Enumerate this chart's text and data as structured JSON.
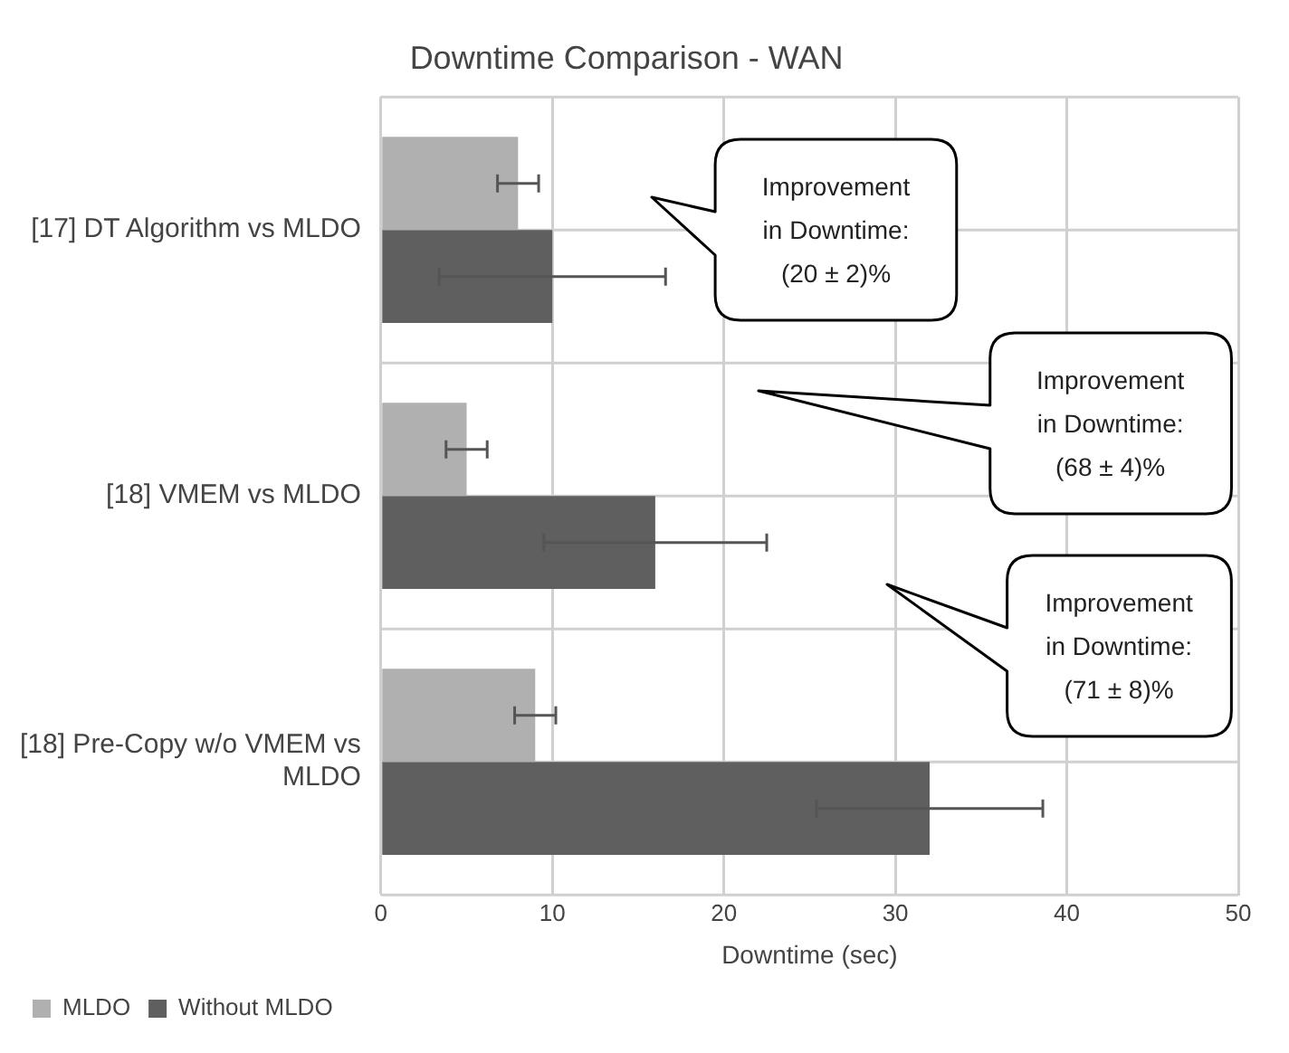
{
  "chart_data": {
    "type": "bar",
    "orientation": "horizontal",
    "title": "Downtime Comparison - WAN",
    "xlabel": "Downtime (sec)",
    "categories": [
      "[17] DT Algorithm vs MLDO",
      "[18] VMEM vs MLDO",
      "[18] Pre-Copy w/o VMEM vs MLDO"
    ],
    "series": [
      {
        "name": "MLDO",
        "color": "#b0b0b0",
        "values": [
          8,
          5,
          9
        ],
        "errors": [
          1.2,
          1.2,
          1.2
        ]
      },
      {
        "name": "Without MLDO",
        "color": "#5f5f5f",
        "values": [
          10,
          16,
          32
        ],
        "errors": [
          6.6,
          6.5,
          6.6
        ]
      }
    ],
    "xlim": [
      0,
      50
    ],
    "xticks": [
      0,
      10,
      20,
      30,
      40,
      50
    ],
    "grid": true,
    "legend": "bottom left",
    "annotations": [
      "Improvement\nin Downtime:\n(20 ± 2)%",
      "Improvement\nin Downtime:\n(68 ± 4)%",
      "Improvement\nin Downtime:\n(71 ± 8)%"
    ]
  }
}
